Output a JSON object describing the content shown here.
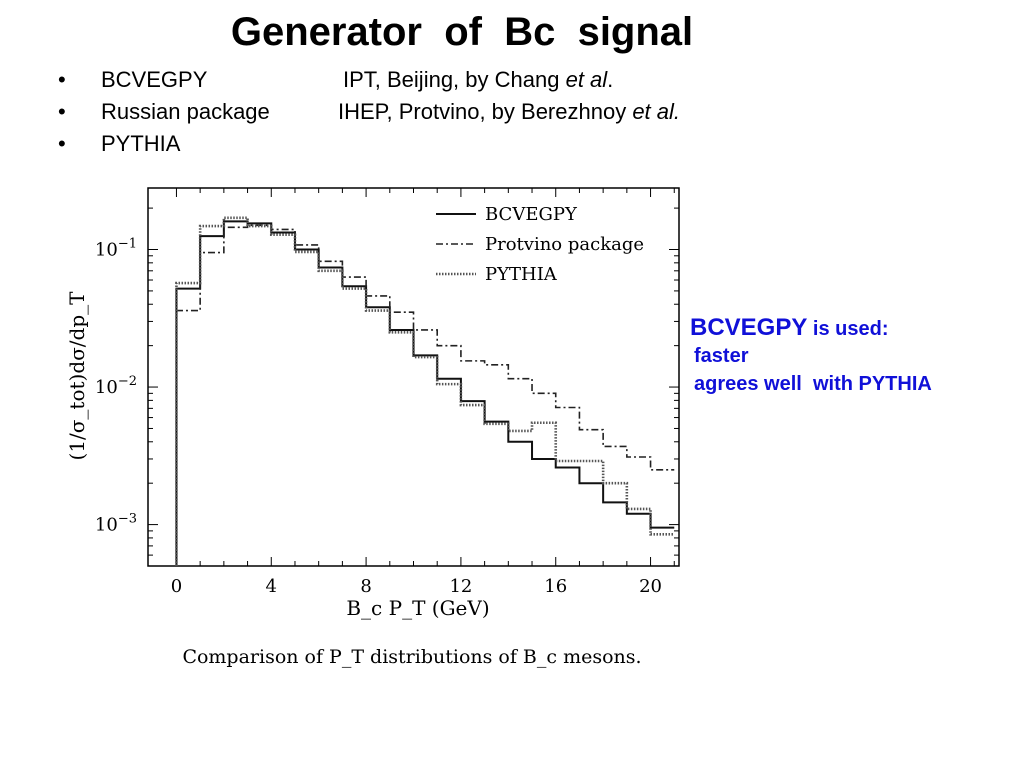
{
  "slide": {
    "title": "Generator  of  Bc  signal",
    "bullets": [
      {
        "marker": "•",
        "name": "BCVEGPY",
        "desc": "IPT, Beijing, by Chang ",
        "desc_em": "et al",
        "desc_tail": "."
      },
      {
        "marker": "•",
        "name": "Russian package",
        "desc": "IHEP, Protvino, by Berezhnoy ",
        "desc_em": "et al.",
        "desc_tail": ""
      },
      {
        "marker": "•",
        "name": "PYTHIA",
        "desc": "",
        "desc_em": "",
        "desc_tail": ""
      }
    ]
  },
  "note": {
    "head": "BCVEGPY",
    "head_suffix": " is used:",
    "lines": [
      "faster",
      "agrees well  with PYTHIA"
    ]
  },
  "chart_data": {
    "type": "line",
    "title": "",
    "caption": "Comparison of P_T distributions of B_c mesons.",
    "xlabel": "B_c P_T (GeV)",
    "ylabel": "(1/σ_tot)dσ/dp_T",
    "x_ticks": [
      "0",
      "4",
      "8",
      "12",
      "16",
      "20"
    ],
    "y_ticks": [
      {
        "base": "10",
        "exp": "−1"
      },
      {
        "base": "10",
        "exp": "−2"
      },
      {
        "base": "10",
        "exp": "−3"
      }
    ],
    "xlim": [
      -1.2,
      21.2
    ],
    "ylim": [
      0.0005,
      0.28
    ],
    "log_y": true,
    "legend_position": "top-right",
    "bin_edges": [
      0,
      1,
      2,
      3,
      4,
      5,
      6,
      7,
      8,
      9,
      10,
      11,
      12,
      13,
      14,
      15,
      16,
      17,
      18,
      19,
      20,
      21
    ],
    "series": [
      {
        "name": "BCVEGPY",
        "style": "solid",
        "values": [
          0.052,
          0.125,
          0.16,
          0.155,
          0.133,
          0.1,
          0.074,
          0.054,
          0.038,
          0.026,
          0.017,
          0.0115,
          0.0079,
          0.0056,
          0.004,
          0.003,
          0.0026,
          0.002,
          0.00145,
          0.0012,
          0.00095
        ]
      },
      {
        "name": "Protvino package",
        "style": "dash-dot",
        "values": [
          0.036,
          0.095,
          0.145,
          0.15,
          0.14,
          0.108,
          0.082,
          0.063,
          0.046,
          0.035,
          0.026,
          0.02,
          0.0155,
          0.0145,
          0.0115,
          0.009,
          0.0071,
          0.0049,
          0.0037,
          0.0031,
          0.0025
        ]
      },
      {
        "name": "PYTHIA",
        "style": "dotted",
        "values": [
          0.057,
          0.148,
          0.17,
          0.148,
          0.128,
          0.096,
          0.07,
          0.052,
          0.036,
          0.025,
          0.0165,
          0.0105,
          0.0074,
          0.0054,
          0.0048,
          0.0055,
          0.0029,
          0.0029,
          0.002,
          0.0013,
          0.00085
        ]
      }
    ]
  }
}
